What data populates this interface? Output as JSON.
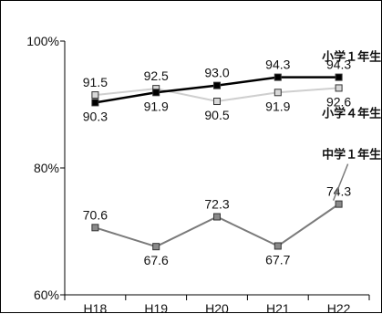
{
  "chart_data": {
    "type": "line",
    "categories": [
      "H18",
      "H19",
      "H20",
      "H21",
      "H22"
    ],
    "ylim": [
      60,
      100
    ],
    "yticks": [
      100,
      80,
      60
    ],
    "ytick_labels": [
      "100%",
      "80%",
      "60%"
    ],
    "grid": false,
    "series": [
      {
        "name": "小学１年生",
        "values": [
          90.3,
          91.9,
          93.0,
          94.3,
          94.3
        ],
        "color": "#000000",
        "marker_fill": "#000000"
      },
      {
        "name": "小学４年生",
        "values": [
          91.5,
          92.5,
          90.5,
          91.9,
          92.6
        ],
        "color": "#cfcfcf",
        "marker_fill": "#d8d8d8"
      },
      {
        "name": "中学１年生",
        "values": [
          70.6,
          67.6,
          72.3,
          67.7,
          74.3
        ],
        "color": "#7a7a7a",
        "marker_fill": "#8a8a8a"
      }
    ]
  }
}
